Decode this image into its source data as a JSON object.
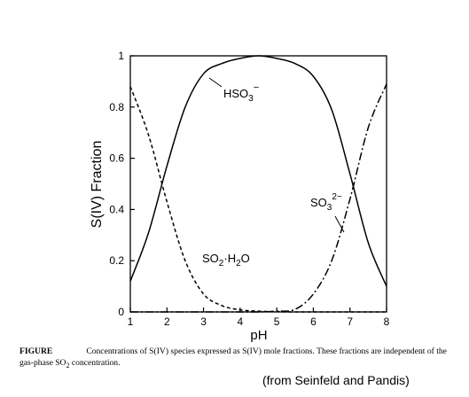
{
  "chart_data": {
    "type": "line",
    "title": "",
    "xlabel": "pH",
    "ylabel": "S(IV) Fraction",
    "xlim": [
      1,
      8
    ],
    "ylim": [
      0,
      1
    ],
    "x_ticks": [
      "1",
      "2",
      "3",
      "4",
      "5",
      "6",
      "7",
      "8"
    ],
    "y_ticks": [
      "0",
      "0.2",
      "0.4",
      "0.6",
      "0.8",
      "1"
    ],
    "grid": false,
    "x": [
      1.0,
      1.5,
      2.0,
      2.5,
      3.0,
      3.5,
      4.0,
      4.5,
      5.0,
      5.5,
      6.0,
      6.5,
      7.0,
      7.5,
      8.0
    ],
    "series": [
      {
        "name": "HSO3−",
        "label_main": "HSO",
        "label_sub": "3",
        "label_sup": "−",
        "style": "solid",
        "values": [
          0.12,
          0.31,
          0.57,
          0.8,
          0.93,
          0.97,
          0.99,
          1.0,
          0.99,
          0.97,
          0.92,
          0.79,
          0.54,
          0.27,
          0.1
        ]
      },
      {
        "name": "SO2·H2O",
        "label_parts": [
          "SO",
          "2",
          "·H",
          "2",
          "O"
        ],
        "style": "dashed",
        "values": [
          0.88,
          0.69,
          0.43,
          0.2,
          0.07,
          0.025,
          0.008,
          0.003,
          0.001,
          0.0,
          0.0,
          0.0,
          0.0,
          0.0,
          0.0
        ]
      },
      {
        "name": "SO32−",
        "label_main": "SO",
        "label_sub": "3",
        "label_sup": "2−",
        "style": "dashdot",
        "values": [
          0.0,
          0.0,
          0.0,
          0.0,
          0.0,
          0.0,
          0.0,
          0.0,
          0.003,
          0.01,
          0.07,
          0.2,
          0.44,
          0.72,
          0.89
        ]
      }
    ]
  },
  "caption": {
    "lead": "FIGURE",
    "text_1": "Concentrations of S(IV) species expressed as S(IV) mole fractions. These fractions are independent of the gas-phase SO",
    "text_sub": "2",
    "text_2": " concentration."
  },
  "source": "(from Seinfeld and Pandis)"
}
